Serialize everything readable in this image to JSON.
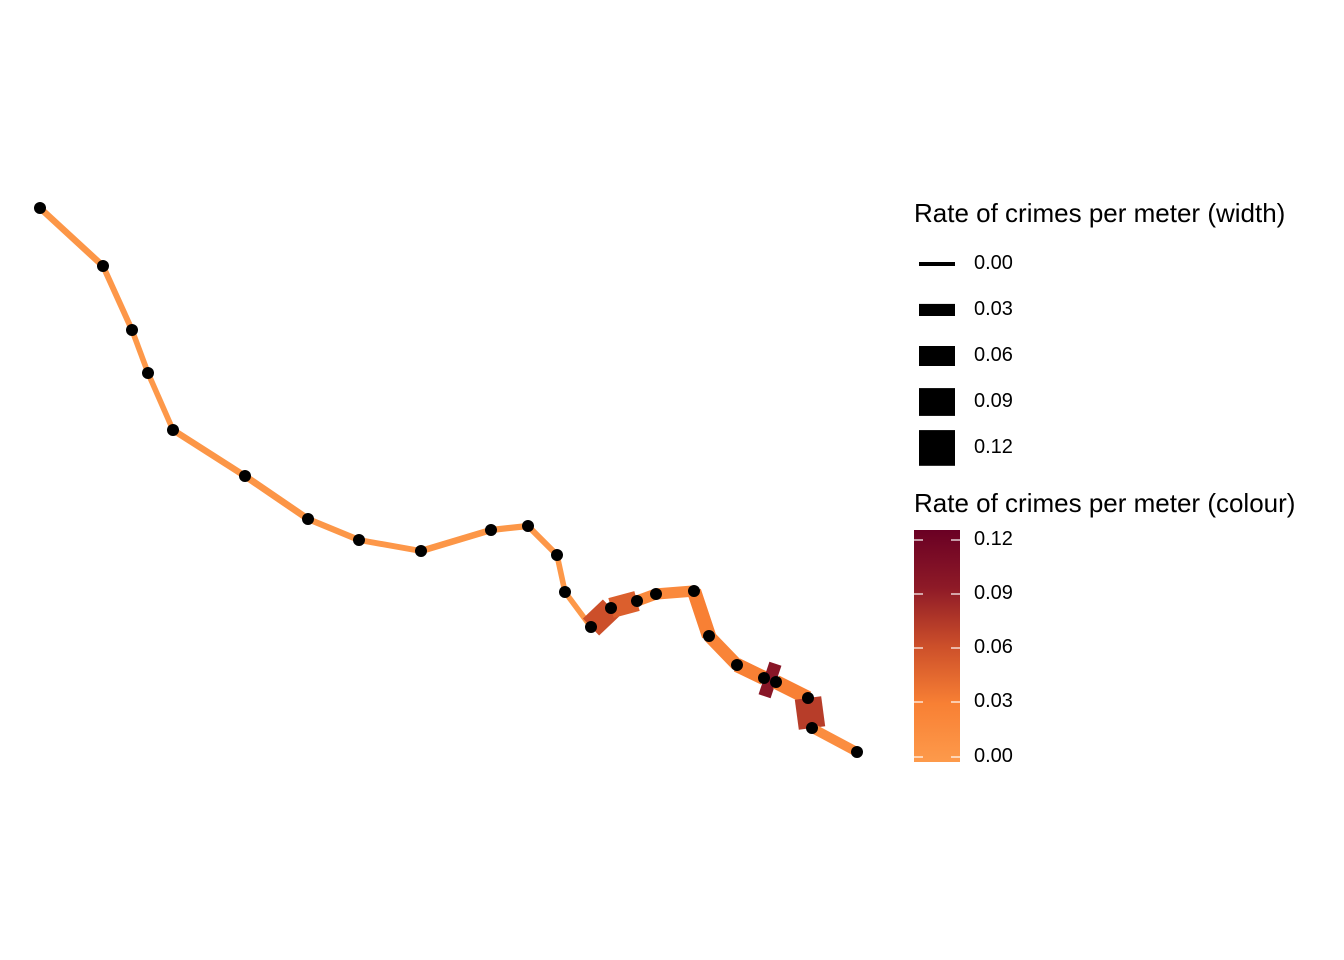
{
  "legend_width": {
    "title": "Rate of crimes per meter (width)",
    "keys": [
      {
        "label": "0.00",
        "value": 0.0
      },
      {
        "label": "0.03",
        "value": 0.03
      },
      {
        "label": "0.06",
        "value": 0.06
      },
      {
        "label": "0.09",
        "value": 0.09
      },
      {
        "label": "0.12",
        "value": 0.12
      }
    ]
  },
  "legend_colour": {
    "title": "Rate of crimes per meter (colour)",
    "ticks": [
      "0.12",
      "0.09",
      "0.06",
      "0.03",
      "0.00"
    ],
    "range": [
      0,
      0.12
    ],
    "colors": [
      "#FD9A4B",
      "#F88034",
      "#CC4F2A",
      "#8E1A27",
      "#6A0024"
    ]
  },
  "chart_data": {
    "type": "map",
    "line_color_scale": "rate",
    "point_color": "#000000",
    "segments": [
      {
        "rate": 0.005
      },
      {
        "rate": 0.003
      },
      {
        "rate": 0.002
      },
      {
        "rate": 0.002
      },
      {
        "rate": 0.005
      },
      {
        "rate": 0.006
      },
      {
        "rate": 0.004
      },
      {
        "rate": 0.003
      },
      {
        "rate": 0.005
      },
      {
        "rate": 0.004
      },
      {
        "rate": 0.003
      },
      {
        "rate": 0.002
      },
      {
        "rate": 0.002
      },
      {
        "rate": 0.06
      },
      {
        "rate": 0.05
      },
      {
        "rate": 0.02
      },
      {
        "rate": 0.02
      },
      {
        "rate": 0.03
      },
      {
        "rate": 0.025
      },
      {
        "rate": 0.03
      },
      {
        "rate": 0.095
      },
      {
        "rate": 0.03
      },
      {
        "rate": 0.07
      },
      {
        "rate": 0.015
      },
      {
        "rate": 0.01
      },
      {
        "rate": 0.12
      },
      {
        "rate": 0.01
      }
    ]
  }
}
